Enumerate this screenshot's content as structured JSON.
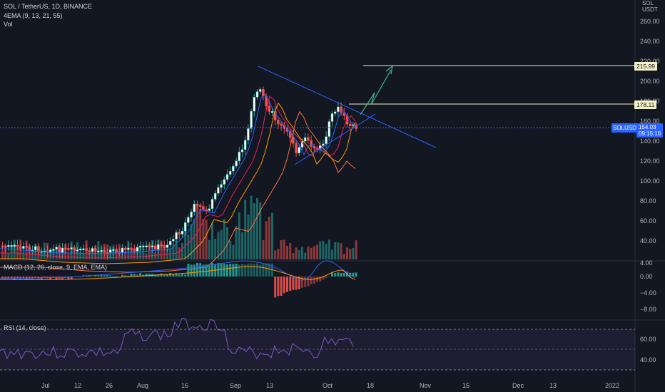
{
  "legend": {
    "symbol": "SOL / TetherUS, 1D, BINANCE",
    "ema": "4EMA (9, 13, 21, 55)",
    "vol": "Vol",
    "macd": "MACD (12, 26, close, 9, EMA, EMA)",
    "rsi": "RSI (14, close)"
  },
  "price_axis": {
    "labels": [
      "260.00",
      "240.00",
      "220.00",
      "200.00",
      "180.00",
      "160.00",
      "140.00",
      "120.00",
      "100.00",
      "80.00",
      "60.00",
      "40.00"
    ],
    "corner": [
      "SOL",
      "USDT"
    ]
  },
  "macd_axis": {
    "labels": [
      "4.00",
      "0.00",
      "−4.00",
      "−8.00"
    ]
  },
  "rsi_axis": {
    "labels": [
      "60.00",
      "40.00"
    ]
  },
  "time_axis": {
    "labels": [
      "Jul",
      "12",
      "26",
      "Aug",
      "16",
      "Sep",
      "13",
      "Oct",
      "18",
      "Nov",
      "15",
      "Dec",
      "13",
      "2022"
    ]
  },
  "tags": {
    "level1": "215.99",
    "level2": "178.11",
    "symbol": "SOLUSDT",
    "price": "154.03",
    "timer": "09:15:16"
  },
  "colors": {
    "up": "#26a69a",
    "down": "#ef5350",
    "bg": "#131722",
    "trend": "#2962ff",
    "ema_orange": "#ff9800",
    "rsi": "#7e57c2"
  }
}
